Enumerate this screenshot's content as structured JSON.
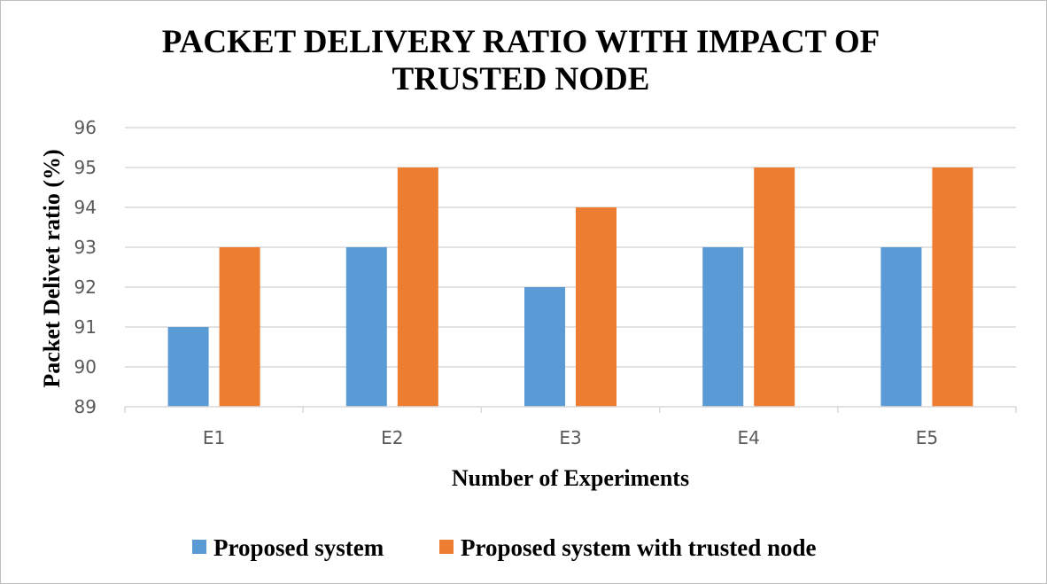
{
  "chart_data": {
    "type": "bar",
    "title_lines": [
      "PACKET DELIVERY RATIO WITH IMPACT OF",
      "TRUSTED NODE"
    ],
    "xlabel": "Number of Experiments",
    "ylabel": "Packet Delivet ratio (%)",
    "categories": [
      "E1",
      "E2",
      "E3",
      "E4",
      "E5"
    ],
    "ylim": [
      89,
      96
    ],
    "ytick_step": 1,
    "grid": true,
    "legend_position": "bottom",
    "series": [
      {
        "name": "Proposed system",
        "color": "#5b9bd5",
        "values": [
          91,
          93,
          92,
          93,
          93
        ]
      },
      {
        "name": "Proposed system with trusted node",
        "color": "#ed7d31",
        "values": [
          93,
          95,
          94,
          95,
          95
        ]
      }
    ]
  }
}
